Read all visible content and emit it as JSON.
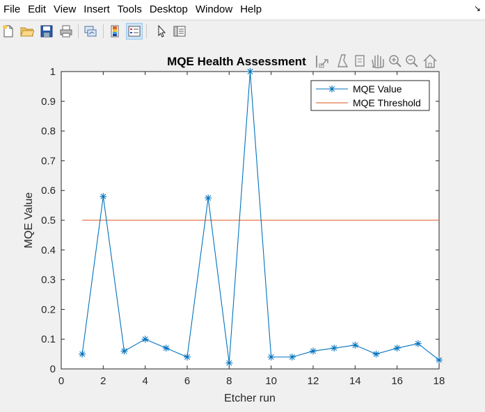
{
  "menubar": {
    "items": [
      "File",
      "Edit",
      "View",
      "Insert",
      "Tools",
      "Desktop",
      "Window",
      "Help"
    ],
    "dock_icon": "↘"
  },
  "toolbar": {
    "buttons": [
      "new-figure-icon",
      "open-file-icon",
      "save-icon",
      "print-icon",
      "link-plot-icon",
      "insert-colorbar-icon",
      "insert-legend-icon",
      "edit-plot-arrow-icon",
      "property-inspector-icon"
    ]
  },
  "axes_toolbar": {
    "buttons": [
      "export-icon",
      "brush-icon",
      "data-tips-icon",
      "pan-icon",
      "zoom-in-icon",
      "zoom-out-icon",
      "home-icon"
    ]
  },
  "chart_data": {
    "type": "line",
    "title": "MQE Health Assessment",
    "xlabel": "Etcher run",
    "ylabel": "MQE Value",
    "xlim": [
      0,
      18
    ],
    "ylim": [
      0,
      1
    ],
    "xticks": [
      0,
      2,
      4,
      6,
      8,
      10,
      12,
      14,
      16,
      18
    ],
    "yticks": [
      0,
      0.1,
      0.2,
      0.3,
      0.4,
      0.5,
      0.6,
      0.7,
      0.8,
      0.9,
      1
    ],
    "ytick_labels": [
      "0",
      "0.1",
      "0.2",
      "0.3",
      "0.4",
      "0.5",
      "0.6",
      "0.7",
      "0.8",
      "0.9",
      "1"
    ],
    "grid": false,
    "legend_position": "top-right",
    "series": [
      {
        "name": "MQE Value",
        "color": "#0072bd",
        "marker": "asterisk",
        "x": [
          1,
          2,
          3,
          4,
          5,
          6,
          7,
          8,
          9,
          10,
          11,
          12,
          13,
          14,
          15,
          16,
          17,
          18
        ],
        "y": [
          0.05,
          0.58,
          0.06,
          0.1,
          0.07,
          0.04,
          0.575,
          0.02,
          1.0,
          0.04,
          0.04,
          0.06,
          0.07,
          0.08,
          0.05,
          0.07,
          0.085,
          0.03
        ]
      },
      {
        "name": "MQE Threshold",
        "color": "#d95319",
        "marker": "none",
        "x": [
          1,
          18
        ],
        "y": [
          0.5,
          0.5
        ]
      }
    ]
  }
}
